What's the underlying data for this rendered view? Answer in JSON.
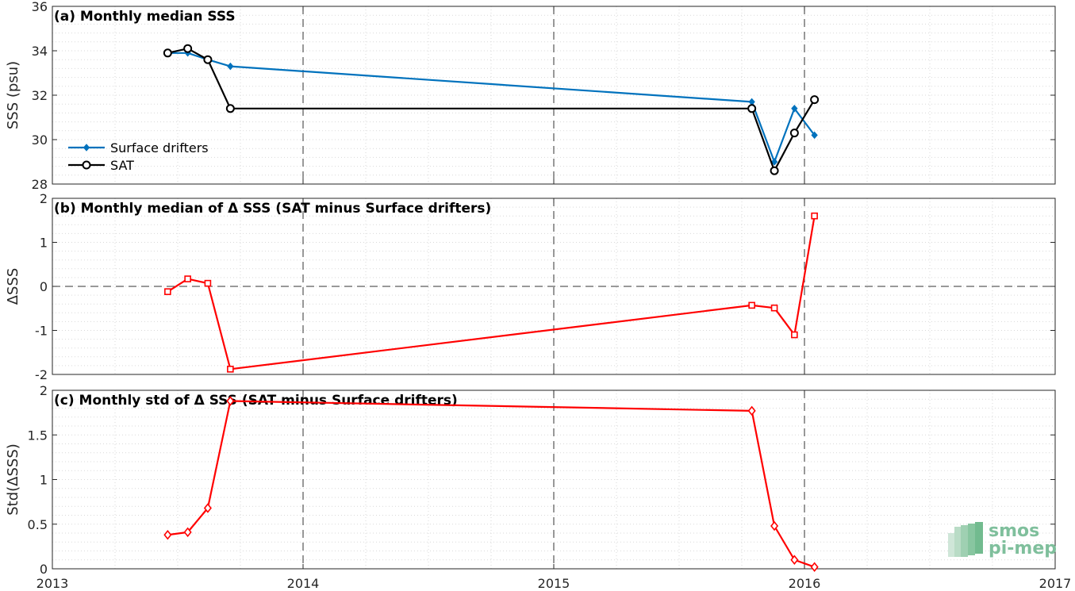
{
  "chart_data": [
    {
      "type": "line",
      "title": "(a) Monthly median SSS",
      "ylabel": "SSS (psu)",
      "xlim": [
        2013,
        2017
      ],
      "ylim": [
        28,
        36
      ],
      "yticks": [
        28,
        30,
        32,
        34,
        36
      ],
      "grid": true,
      "legend": "bottom-left",
      "series": [
        {
          "name": "Surface drifters",
          "color": "#0072bd",
          "marker": "filled-diamond",
          "x": [
            2013.46,
            2013.54,
            2013.62,
            2013.71,
            2015.79,
            2015.88,
            2015.96,
            2016.04
          ],
          "y": [
            33.9,
            33.9,
            33.6,
            33.3,
            31.7,
            29.0,
            31.4,
            30.2
          ]
        },
        {
          "name": "SAT",
          "color": "#000000",
          "marker": "circle",
          "x": [
            2013.46,
            2013.54,
            2013.62,
            2013.71,
            2015.79,
            2015.88,
            2015.96,
            2016.04
          ],
          "y": [
            33.9,
            34.1,
            33.6,
            31.4,
            31.4,
            28.6,
            30.3,
            31.8
          ]
        }
      ]
    },
    {
      "type": "line",
      "title": "(b) Monthly median of Δ SSS (SAT minus Surface drifters)",
      "ylabel": "ΔSSS",
      "xlim": [
        2013,
        2017
      ],
      "ylim": [
        -2,
        2
      ],
      "yticks": [
        -2,
        -1,
        0,
        1,
        2
      ],
      "grid": true,
      "series": [
        {
          "color": "#ff0000",
          "marker": "square",
          "x": [
            2013.46,
            2013.54,
            2013.62,
            2013.71,
            2015.79,
            2015.88,
            2015.96,
            2016.04
          ],
          "y": [
            -0.12,
            0.17,
            0.07,
            -1.88,
            -0.43,
            -0.49,
            -1.1,
            1.6
          ]
        }
      ]
    },
    {
      "type": "line",
      "title": "(c) Monthly std of Δ SSS (SAT minus Surface drifters)",
      "ylabel": "Std(ΔSSS)",
      "xlabel": "",
      "xlim": [
        2013,
        2017
      ],
      "ylim": [
        0,
        2
      ],
      "yticks": [
        0,
        0.5,
        1,
        1.5,
        2
      ],
      "xticks": [
        2013,
        2014,
        2015,
        2016,
        2017
      ],
      "grid": true,
      "series": [
        {
          "color": "#ff0000",
          "marker": "diamond",
          "x": [
            2013.46,
            2013.54,
            2013.62,
            2013.71,
            2015.79,
            2015.88,
            2015.96,
            2016.04
          ],
          "y": [
            0.38,
            0.41,
            0.68,
            1.88,
            1.77,
            0.48,
            0.1,
            0.02
          ]
        }
      ]
    }
  ],
  "logo": {
    "line1": "smos",
    "line2": "pi-mep"
  }
}
